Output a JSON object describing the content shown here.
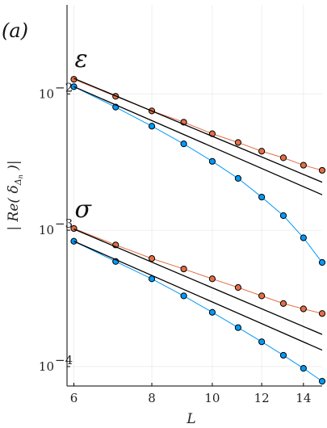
{
  "chart_data": {
    "type": "line",
    "panel_label": "(a)",
    "xlabel": "L",
    "ylabel": "| Re( δ_{Δn} )|",
    "ylabel_parts": {
      "prefix": "| Re(",
      "delta": "δ",
      "sub": "Δ",
      "subsub": "n",
      "suffix": ")|"
    },
    "x_scale": "log",
    "y_scale": "log",
    "xlim": [
      5.85,
      15.0
    ],
    "ylim": [
      7.2e-05,
      0.045
    ],
    "x_ticks": [
      6,
      8,
      10,
      12,
      14
    ],
    "x_tick_labels": [
      "6",
      "8",
      "10",
      "12",
      "14"
    ],
    "y_ticks": [
      0.0001,
      0.001,
      0.01
    ],
    "y_tick_labels": [
      {
        "base": "10",
        "exp": "−4"
      },
      {
        "base": "10",
        "exp": "−3"
      },
      {
        "base": "10",
        "exp": "−2"
      }
    ],
    "grid": true,
    "groups": [
      {
        "label": "ε",
        "series": [
          {
            "color": "#e26f46",
            "marker": "circle",
            "x": [
              6,
              7,
              8,
              9,
              10,
              11,
              12,
              13,
              14,
              15
            ],
            "y": [
              0.0128,
              0.0096,
              0.0075,
              0.0062,
              0.0051,
              0.0044,
              0.0038,
              0.0034,
              0.003,
              0.00275
            ]
          },
          {
            "color": "#009af9",
            "marker": "circle",
            "x": [
              6,
              7,
              8,
              9,
              10,
              11,
              12,
              13,
              14,
              15
            ],
            "y": [
              0.0113,
              0.008,
              0.0058,
              0.0043,
              0.0032,
              0.0024,
              0.00175,
              0.00128,
              0.00088,
              0.00058
            ]
          },
          {
            "color": "#000000",
            "marker": "none",
            "x": [
              6,
              15
            ],
            "y": [
              0.013,
              0.00225
            ]
          },
          {
            "color": "#000000",
            "marker": "none",
            "x": [
              6,
              15
            ],
            "y": [
              0.0113,
              0.00182
            ]
          }
        ]
      },
      {
        "label": "σ",
        "series": [
          {
            "color": "#e26f46",
            "marker": "circle",
            "x": [
              6,
              7,
              8,
              9,
              10,
              11,
              12,
              13,
              14,
              15
            ],
            "y": [
              0.00103,
              0.00078,
              0.00062,
              0.00052,
              0.00044,
              0.00038,
              0.00033,
              0.00029,
              0.000265,
              0.000245
            ]
          },
          {
            "color": "#009af9",
            "marker": "circle",
            "x": [
              6,
              7,
              8,
              9,
              10,
              11,
              12,
              13,
              14,
              15
            ],
            "y": [
              0.00083,
              0.00059,
              0.00044,
              0.00033,
              0.00025,
              0.000193,
              0.000152,
              0.000121,
              9.7e-05,
              7.8e-05
            ]
          },
          {
            "color": "#000000",
            "marker": "none",
            "x": [
              6,
              15
            ],
            "y": [
              0.00102,
              0.000172
            ]
          },
          {
            "color": "#000000",
            "marker": "none",
            "x": [
              6,
              15
            ],
            "y": [
              0.00083,
              0.000132
            ]
          }
        ]
      }
    ]
  }
}
